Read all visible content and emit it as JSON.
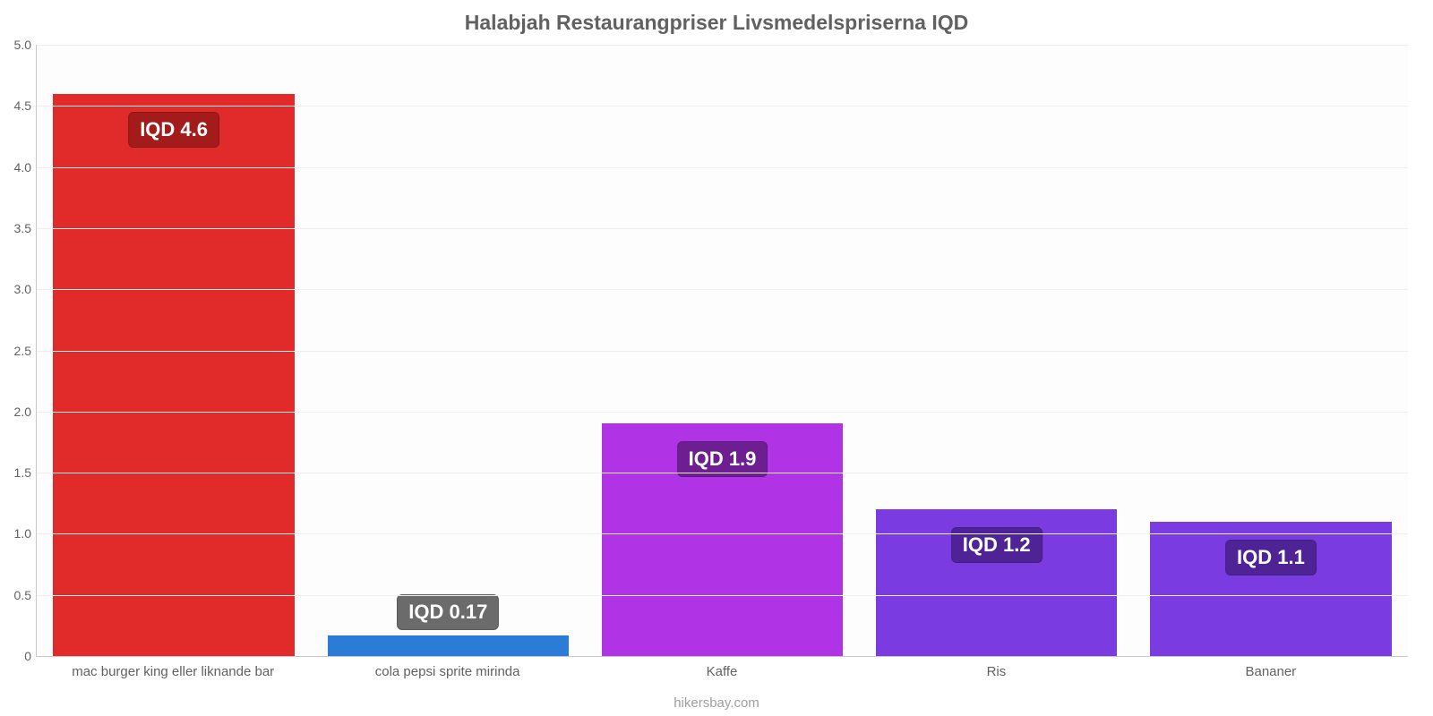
{
  "chart": {
    "type": "bar",
    "title": "Halabjah Restaurangpriser Livsmedelspriserna IQD",
    "title_fontsize": 23,
    "title_color": "#616161",
    "source_label": "hikersbay.com",
    "source_color": "#9e9e9e",
    "background_color": "#fdfdfd",
    "grid_color": "#eeeeee",
    "axis_color": "#c8c8c8",
    "tick_label_color": "#616161",
    "tick_fontsize": 14,
    "category_fontsize": 15,
    "ylim": [
      0,
      5.0
    ],
    "ytick_step": 0.5,
    "yticks": [
      "0",
      "0.5",
      "1.0",
      "1.5",
      "2.0",
      "2.5",
      "3.0",
      "3.5",
      "4.0",
      "4.5",
      "5.0"
    ],
    "bar_width": 0.88,
    "value_label_fontsize": 22,
    "bars": [
      {
        "category": "mac burger king eller liknande bar",
        "value": 4.6,
        "value_label": "IQD 4.6",
        "bar_color": "#e12a2a",
        "label_bg": "#a31b1b"
      },
      {
        "category": "cola pepsi sprite mirinda",
        "value": 0.17,
        "value_label": "IQD 0.17",
        "bar_color": "#2a7cd6",
        "label_bg": "#6b6b6b"
      },
      {
        "category": "Kaffe",
        "value": 1.9,
        "value_label": "IQD 1.9",
        "bar_color": "#b033e6",
        "label_bg": "#6d1f92"
      },
      {
        "category": "Ris",
        "value": 1.2,
        "value_label": "IQD 1.2",
        "bar_color": "#7a3be0",
        "label_bg": "#4e2396"
      },
      {
        "category": "Bananer",
        "value": 1.1,
        "value_label": "IQD 1.1",
        "bar_color": "#7a3be0",
        "label_bg": "#4e2396"
      }
    ]
  }
}
